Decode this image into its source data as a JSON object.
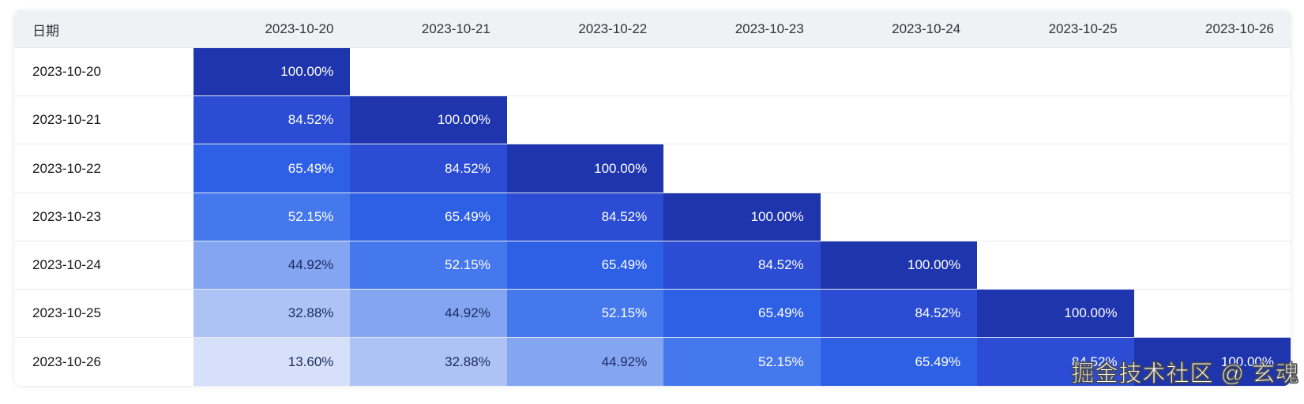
{
  "table": {
    "corner_header": "日期",
    "column_headers": [
      "2023-10-20",
      "2023-10-21",
      "2023-10-22",
      "2023-10-23",
      "2023-10-24",
      "2023-10-25",
      "2023-10-26"
    ],
    "rows": [
      {
        "label": "2023-10-20",
        "values": [
          "100.00%"
        ]
      },
      {
        "label": "2023-10-21",
        "values": [
          "84.52%",
          "100.00%"
        ]
      },
      {
        "label": "2023-10-22",
        "values": [
          "65.49%",
          "84.52%",
          "100.00%"
        ]
      },
      {
        "label": "2023-10-23",
        "values": [
          "52.15%",
          "65.49%",
          "84.52%",
          "100.00%"
        ]
      },
      {
        "label": "2023-10-24",
        "values": [
          "44.92%",
          "52.15%",
          "65.49%",
          "84.52%",
          "100.00%"
        ]
      },
      {
        "label": "2023-10-25",
        "values": [
          "32.88%",
          "44.92%",
          "52.15%",
          "65.49%",
          "84.52%",
          "100.00%"
        ]
      },
      {
        "label": "2023-10-26",
        "values": [
          "13.60%",
          "32.88%",
          "44.92%",
          "52.15%",
          "65.49%",
          "84.52%",
          "100.00%"
        ]
      }
    ]
  },
  "heatmap": {
    "value_colors": {
      "100.00%": "#1e35ae",
      "84.52%": "#2b4cd3",
      "65.49%": "#2e60e6",
      "52.15%": "#4678ed",
      "44.92%": "#84a6f2",
      "32.88%": "#aec3f5",
      "13.60%": "#d7e0f9"
    },
    "white_text_min_value": 50,
    "light_cell_text_color": "#1c2a5e",
    "dark_cell_text_color": "#ffffff",
    "header_background": "#eff1f4",
    "row_divider_color": "#e8eaef"
  },
  "watermark": {
    "text": "掘金技术社区 @ 玄魂"
  },
  "chart_data": {
    "type": "heatmap",
    "title": "",
    "corner_label": "日期",
    "x_categories": [
      "2023-10-20",
      "2023-10-21",
      "2023-10-22",
      "2023-10-23",
      "2023-10-24",
      "2023-10-25",
      "2023-10-26"
    ],
    "y_categories": [
      "2023-10-20",
      "2023-10-21",
      "2023-10-22",
      "2023-10-23",
      "2023-10-24",
      "2023-10-25",
      "2023-10-26"
    ],
    "value_unit": "%",
    "values": [
      [
        100.0
      ],
      [
        84.52,
        100.0
      ],
      [
        65.49,
        84.52,
        100.0
      ],
      [
        52.15,
        65.49,
        84.52,
        100.0
      ],
      [
        44.92,
        52.15,
        65.49,
        84.52,
        100.0
      ],
      [
        32.88,
        44.92,
        52.15,
        65.49,
        84.52,
        100.0
      ],
      [
        13.6,
        32.88,
        44.92,
        52.15,
        65.49,
        84.52,
        100.0
      ]
    ],
    "color_scale": "light-blue (low) to dark-navy-blue (high)",
    "legend": "none",
    "grid": "row dividers only"
  }
}
